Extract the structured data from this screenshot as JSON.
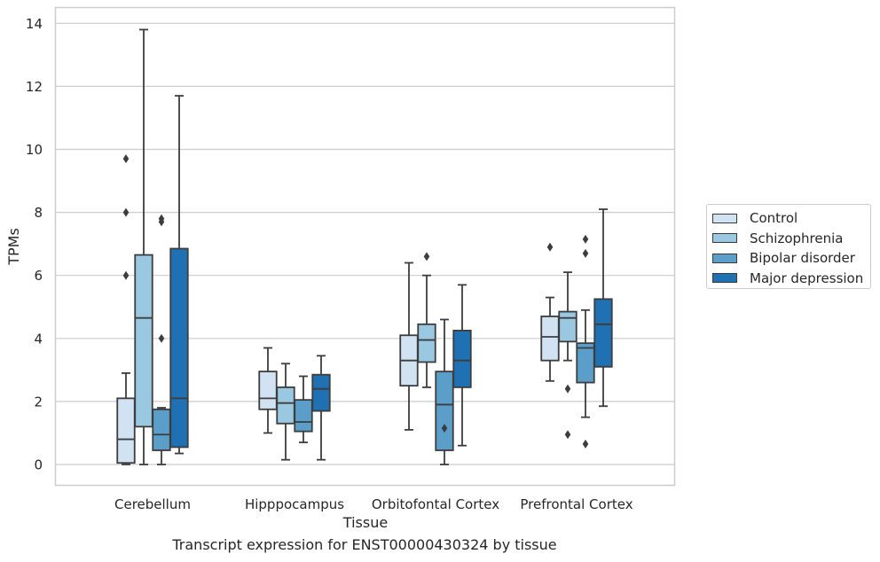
{
  "chart_data": {
    "type": "box",
    "xlabel": "Tissue",
    "ylabel": "TPMs",
    "ylim": [
      -0.65,
      14.5
    ],
    "yticks": [
      0,
      2,
      4,
      6,
      8,
      10,
      12,
      14
    ],
    "grid": true,
    "legend_position": "right",
    "categories": [
      "Cerebellum",
      "Hipppocampus",
      "Orbitofontal Cortex",
      "Prefrontal Cortex"
    ],
    "series": [
      {
        "name": "Control",
        "color": "#d1e2f2",
        "boxes": [
          {
            "whisker_low": 0.0,
            "q1": 0.05,
            "median": 0.8,
            "q3": 2.1,
            "whisker_high": 2.9,
            "outliers": [
              6.0,
              8.0,
              9.7
            ]
          },
          {
            "whisker_low": 1.0,
            "q1": 1.75,
            "median": 2.1,
            "q3": 2.95,
            "whisker_high": 3.7,
            "outliers": []
          },
          {
            "whisker_low": 1.1,
            "q1": 2.5,
            "median": 3.3,
            "q3": 4.1,
            "whisker_high": 6.4,
            "outliers": []
          },
          {
            "whisker_low": 2.65,
            "q1": 3.3,
            "median": 4.05,
            "q3": 4.7,
            "whisker_high": 5.3,
            "outliers": [
              6.9
            ]
          }
        ]
      },
      {
        "name": "Schizophrenia",
        "color": "#9ac8e0",
        "boxes": [
          {
            "whisker_low": 0.0,
            "q1": 1.2,
            "median": 4.65,
            "q3": 6.65,
            "whisker_high": 13.8,
            "outliers": []
          },
          {
            "whisker_low": 0.15,
            "q1": 1.3,
            "median": 1.95,
            "q3": 2.45,
            "whisker_high": 3.2,
            "outliers": []
          },
          {
            "whisker_low": 2.45,
            "q1": 3.25,
            "median": 3.95,
            "q3": 4.45,
            "whisker_high": 6.0,
            "outliers": [
              6.6
            ]
          },
          {
            "whisker_low": 3.3,
            "q1": 3.9,
            "median": 4.65,
            "q3": 4.85,
            "whisker_high": 6.1,
            "outliers": [
              2.4,
              0.95
            ]
          }
        ]
      },
      {
        "name": "Bipolar disorder",
        "color": "#5a9ec9",
        "boxes": [
          {
            "whisker_low": 0.0,
            "q1": 0.45,
            "median": 0.95,
            "q3": 1.75,
            "whisker_high": 1.8,
            "outliers": [
              4.0,
              7.7,
              7.8
            ]
          },
          {
            "whisker_low": 0.7,
            "q1": 1.05,
            "median": 1.35,
            "q3": 2.05,
            "whisker_high": 2.8,
            "outliers": []
          },
          {
            "whisker_low": 0.0,
            "q1": 0.45,
            "median": 1.9,
            "q3": 2.95,
            "whisker_high": 4.6,
            "outliers": [
              1.15
            ]
          },
          {
            "whisker_low": 1.5,
            "q1": 2.6,
            "median": 3.7,
            "q3": 3.85,
            "whisker_high": 4.9,
            "outliers": [
              6.7,
              7.15,
              0.65
            ]
          }
        ]
      },
      {
        "name": "Major depression",
        "color": "#2070b4",
        "boxes": [
          {
            "whisker_low": 0.35,
            "q1": 0.55,
            "median": 2.1,
            "q3": 6.85,
            "whisker_high": 11.7,
            "outliers": []
          },
          {
            "whisker_low": 0.15,
            "q1": 1.7,
            "median": 2.4,
            "q3": 2.85,
            "whisker_high": 3.45,
            "outliers": []
          },
          {
            "whisker_low": 0.6,
            "q1": 2.45,
            "median": 3.3,
            "q3": 4.25,
            "whisker_high": 5.7,
            "outliers": []
          },
          {
            "whisker_low": 1.85,
            "q1": 3.1,
            "median": 4.45,
            "q3": 5.25,
            "whisker_high": 8.1,
            "outliers": []
          }
        ]
      }
    ]
  },
  "caption": "Transcript expression for ENST00000430324 by tissue"
}
